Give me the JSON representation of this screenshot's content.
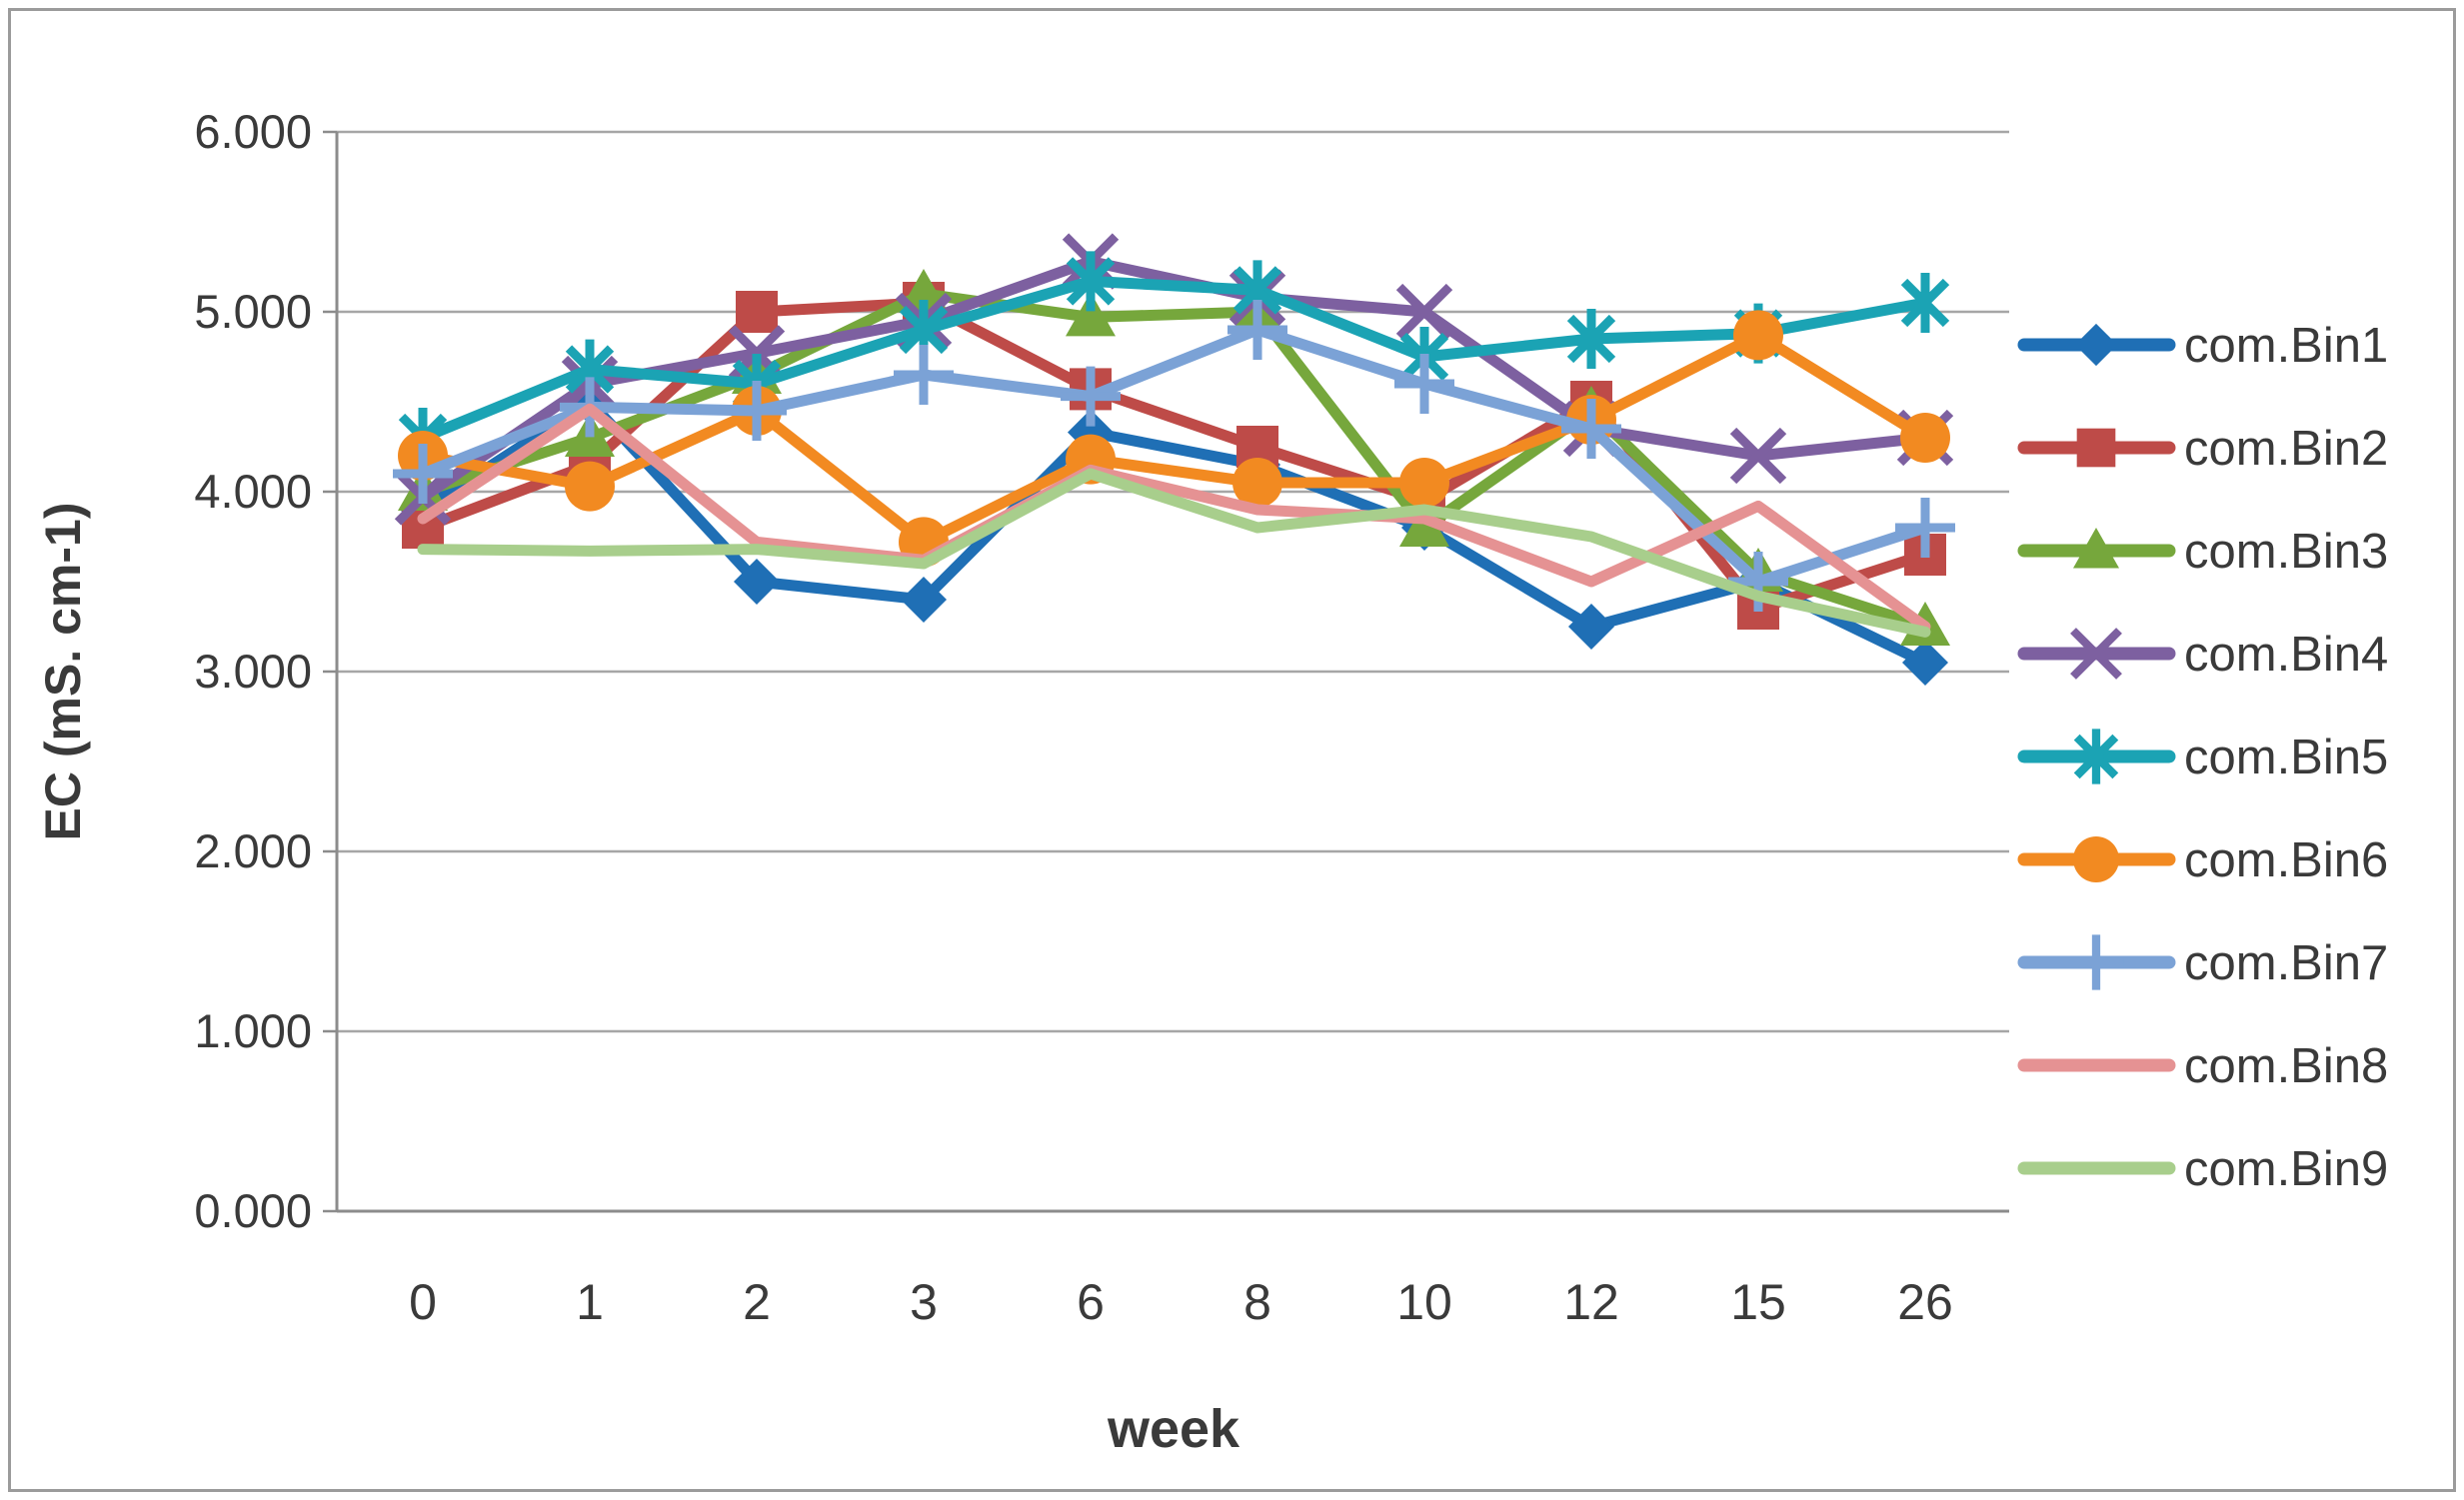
{
  "frame": {
    "border_color": "#9b9b9b"
  },
  "chart_data": {
    "type": "line",
    "title": "",
    "xlabel": "week",
    "ylabel": "EC (mS. cm-1)",
    "categories": [
      "0",
      "1",
      "2",
      "3",
      "6",
      "8",
      "10",
      "12",
      "15",
      "26"
    ],
    "y_ticks": [
      "0.000",
      "1.000",
      "2.000",
      "3.000",
      "4.000",
      "5.000",
      "6.000"
    ],
    "ylim": [
      0,
      6
    ],
    "grid": "horizontal-gridlines",
    "legend_position": "right",
    "axis_color": "#8c8c8c",
    "gridline_color": "#a6a6a6",
    "series": [
      {
        "name": "com.Bin1",
        "color": "#1F6FB5",
        "marker": "diamond",
        "values": [
          3.9,
          4.5,
          3.5,
          3.4,
          4.33,
          4.15,
          3.8,
          3.25,
          3.5,
          3.05
        ]
      },
      {
        "name": "com.Bin2",
        "color": "#BE4B48",
        "marker": "square",
        "values": [
          3.8,
          4.15,
          5.0,
          5.05,
          4.57,
          4.25,
          3.95,
          4.5,
          3.35,
          3.65
        ]
      },
      {
        "name": "com.Bin3",
        "color": "#76A73C",
        "marker": "triangle",
        "values": [
          4.0,
          4.3,
          4.65,
          5.1,
          4.97,
          5.0,
          3.8,
          4.45,
          3.55,
          3.25
        ]
      },
      {
        "name": "com.Bin4",
        "color": "#7D60A0",
        "marker": "xcross",
        "values": [
          3.97,
          4.6,
          4.77,
          4.95,
          5.28,
          5.08,
          5.0,
          4.35,
          4.2,
          4.3
        ]
      },
      {
        "name": "com.Bin5",
        "color": "#1BA3B4",
        "marker": "asterisk",
        "values": [
          4.3,
          4.68,
          4.6,
          4.9,
          5.17,
          5.12,
          4.75,
          4.85,
          4.88,
          5.05
        ]
      },
      {
        "name": "com.Bin6",
        "color": "#F28A21",
        "marker": "circle",
        "values": [
          4.2,
          4.03,
          4.45,
          3.72,
          4.18,
          4.05,
          4.05,
          4.4,
          4.87,
          4.3
        ]
      },
      {
        "name": "com.Bin7",
        "color": "#7BA2D6",
        "marker": "plus",
        "values": [
          4.1,
          4.47,
          4.45,
          4.65,
          4.53,
          4.9,
          4.6,
          4.35,
          3.5,
          3.8
        ]
      },
      {
        "name": "com.Bin8",
        "color": "#E59293",
        "marker": "none",
        "values": [
          3.85,
          4.46,
          3.72,
          3.62,
          4.12,
          3.9,
          3.85,
          3.5,
          3.92,
          3.25
        ]
      },
      {
        "name": "com.Bin9",
        "color": "#A8CE8C",
        "marker": "none",
        "values": [
          3.68,
          3.67,
          3.68,
          3.6,
          4.1,
          3.8,
          3.9,
          3.75,
          3.42,
          3.22
        ]
      }
    ]
  }
}
